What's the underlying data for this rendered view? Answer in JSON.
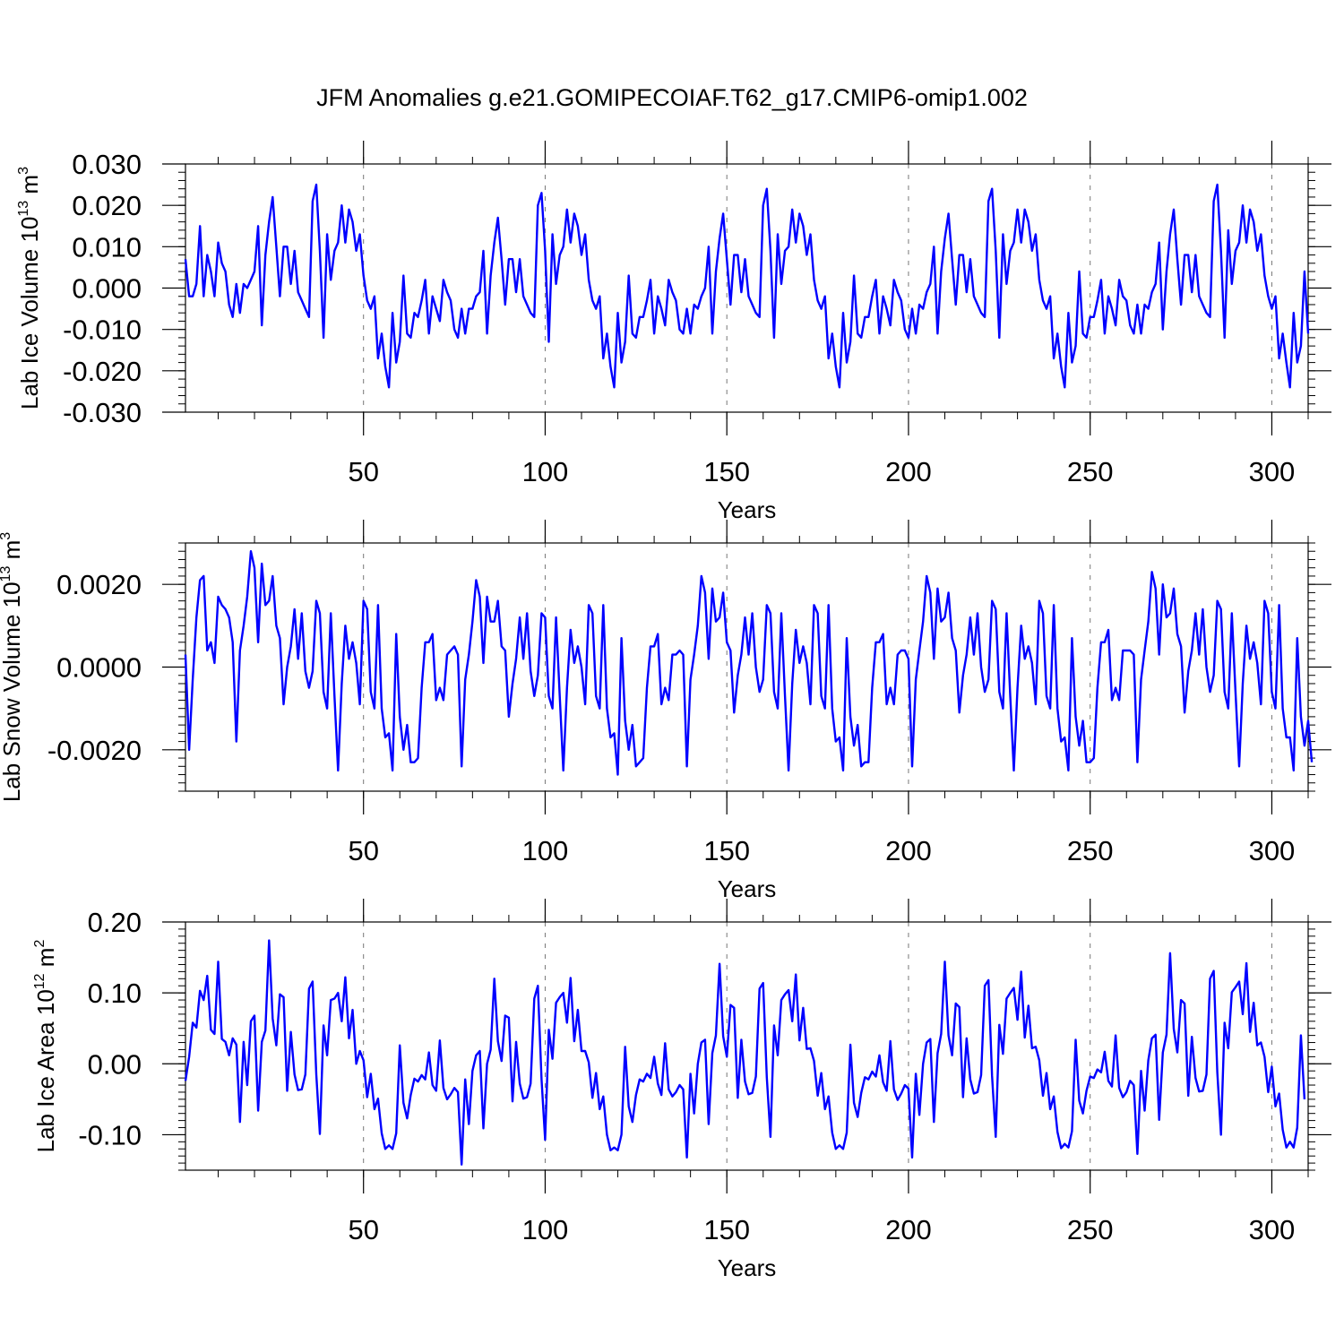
{
  "title": "JFM Anomalies g.e21.GOMIPECOIAF.T62_g17.CMIP6-omip1.002",
  "line_color": "#0000ff",
  "chart_data": [
    {
      "type": "line",
      "ylabel": {
        "main": "Lab Ice Volume 10",
        "sup": "13",
        "unit": " m",
        "unit_sup": "3"
      },
      "xlabel": "Years",
      "xlim": [
        1,
        310
      ],
      "ylim": [
        -0.03,
        0.03
      ],
      "xticks": [
        50,
        100,
        150,
        200,
        250,
        300
      ],
      "xtick_labels": [
        "50",
        "100",
        "150",
        "200",
        "250",
        "300"
      ],
      "yticks": [
        0.03,
        0.02,
        0.01,
        0.0,
        -0.01,
        -0.02,
        -0.03
      ],
      "ytick_labels": [
        "0.030",
        "0.020",
        "0.010",
        "0.000",
        "-0.010",
        "-0.020",
        "-0.030"
      ],
      "x_start": 1,
      "values": [
        0.007,
        -0.002,
        -0.002,
        0.001,
        0.015,
        -0.002,
        0.008,
        0.004,
        -0.002,
        0.011,
        0.006,
        0.004,
        -0.004,
        -0.007,
        0.001,
        -0.006,
        0.001,
        0.0,
        0.002,
        0.004,
        0.015,
        -0.009,
        0.008,
        0.016,
        0.022,
        0.01,
        -0.002,
        0.01,
        0.01,
        0.001,
        0.009,
        -0.001,
        -0.003,
        -0.005,
        -0.007,
        0.021,
        0.025,
        0.009,
        -0.012,
        0.013,
        0.002,
        0.009,
        0.011,
        0.02,
        0.011,
        0.019,
        0.016,
        0.009,
        0.013,
        0.003,
        -0.003,
        -0.005,
        -0.002,
        -0.017,
        -0.011,
        -0.019,
        -0.024,
        -0.006,
        -0.018,
        -0.013,
        0.003,
        -0.011,
        -0.012,
        -0.006,
        -0.007,
        -0.003,
        0.002,
        -0.011,
        -0.002,
        -0.005,
        -0.008,
        0.002,
        -0.001,
        -0.003,
        -0.01,
        -0.012,
        -0.005,
        -0.011,
        -0.005,
        -0.005,
        -0.002,
        -0.001,
        0.009,
        -0.011,
        0.003,
        0.011,
        0.017,
        0.007,
        -0.004,
        0.007,
        0.007,
        -0.001,
        0.007,
        -0.002,
        -0.004,
        -0.006,
        -0.007,
        0.02,
        0.023,
        0.009,
        -0.013,
        0.013,
        0.001,
        0.008,
        0.01,
        0.019,
        0.011,
        0.018,
        0.015,
        0.008,
        0.013,
        0.002,
        -0.003,
        -0.005,
        -0.002,
        -0.017,
        -0.011,
        -0.019,
        -0.024,
        -0.006,
        -0.018,
        -0.013,
        0.003,
        -0.011,
        -0.012,
        -0.007,
        -0.007,
        -0.003,
        0.002,
        -0.011,
        -0.002,
        -0.005,
        -0.009,
        0.002,
        -0.001,
        -0.003,
        -0.01,
        -0.011,
        -0.005,
        -0.011,
        -0.004,
        -0.005,
        -0.002,
        0.0,
        0.01,
        -0.011,
        0.004,
        0.012,
        0.018,
        0.007,
        -0.004,
        0.008,
        0.008,
        -0.001,
        0.007,
        -0.002,
        -0.004,
        -0.006,
        -0.007,
        0.02,
        0.024,
        0.009,
        -0.012,
        0.013,
        0.001,
        0.009,
        0.01,
        0.019,
        0.011,
        0.018,
        0.015,
        0.008,
        0.013,
        0.002,
        -0.003,
        -0.005,
        -0.002,
        -0.017,
        -0.011,
        -0.019,
        -0.024,
        -0.006,
        -0.018,
        -0.013,
        0.003,
        -0.011,
        -0.012,
        -0.007,
        -0.007,
        -0.002,
        0.002,
        -0.011,
        -0.002,
        -0.005,
        -0.009,
        0.002,
        -0.001,
        -0.003,
        -0.01,
        -0.012,
        -0.005,
        -0.011,
        -0.004,
        -0.005,
        -0.001,
        0.001,
        0.01,
        -0.011,
        0.004,
        0.012,
        0.018,
        0.007,
        -0.004,
        0.008,
        0.008,
        -0.001,
        0.007,
        -0.002,
        -0.004,
        -0.006,
        -0.007,
        0.021,
        0.024,
        0.009,
        -0.012,
        0.013,
        0.001,
        0.009,
        0.011,
        0.019,
        0.011,
        0.019,
        0.016,
        0.009,
        0.013,
        0.002,
        -0.003,
        -0.005,
        -0.002,
        -0.017,
        -0.011,
        -0.019,
        -0.024,
        -0.006,
        -0.018,
        -0.014,
        0.004,
        -0.011,
        -0.012,
        -0.007,
        -0.007,
        -0.003,
        0.002,
        -0.011,
        -0.002,
        -0.005,
        -0.009,
        0.002,
        -0.002,
        -0.003,
        -0.009,
        -0.011,
        -0.004,
        -0.011,
        -0.004,
        -0.005,
        -0.001,
        0.001,
        0.011,
        -0.01,
        0.004,
        0.013,
        0.019,
        0.007,
        -0.004,
        0.008,
        0.008,
        -0.001,
        0.008,
        -0.002,
        -0.004,
        -0.006,
        -0.007,
        0.021,
        0.025,
        0.009,
        -0.012,
        0.014,
        0.001,
        0.009,
        0.011,
        0.02,
        0.011,
        0.019,
        0.016,
        0.009,
        0.013,
        0.003,
        -0.002,
        -0.005,
        -0.002,
        -0.017,
        -0.011,
        -0.018,
        -0.024,
        -0.006,
        -0.018,
        -0.014,
        0.004,
        -0.011
      ]
    },
    {
      "type": "line",
      "ylabel": {
        "main": "Lab Snow Volume 10",
        "sup": "13",
        "unit": " m",
        "unit_sup": "3"
      },
      "xlabel": "Years",
      "xlim": [
        1,
        310
      ],
      "ylim": [
        -0.003,
        0.003
      ],
      "xticks": [
        50,
        100,
        150,
        200,
        250,
        300
      ],
      "xtick_labels": [
        "50",
        "100",
        "150",
        "200",
        "250",
        "300"
      ],
      "yticks": [
        0.002,
        0.0,
        -0.002
      ],
      "ytick_labels": [
        "0.0020",
        "0.0000",
        "-0.0020"
      ],
      "x_start": 1,
      "values": [
        0.0003,
        -0.002,
        -0.0003,
        0.0012,
        0.0021,
        0.0022,
        0.0004,
        0.0006,
        0.0001,
        0.0017,
        0.0015,
        0.0014,
        0.0012,
        0.0006,
        -0.0018,
        0.0004,
        0.001,
        0.0017,
        0.0028,
        0.0024,
        0.0006,
        0.0025,
        0.0015,
        0.0016,
        0.0022,
        0.001,
        0.0007,
        -0.0009,
        0.0,
        0.0005,
        0.0014,
        0.0002,
        0.0013,
        -0.0001,
        -0.0005,
        -0.0001,
        0.0016,
        0.0013,
        -0.0006,
        -0.001,
        0.0013,
        -0.0007,
        -0.0025,
        -0.0004,
        0.001,
        0.0002,
        0.0006,
        0.0001,
        -0.0009,
        0.0016,
        0.0014,
        -0.0006,
        -0.001,
        0.0015,
        -0.001,
        -0.0017,
        -0.0016,
        -0.0025,
        0.0008,
        -0.0012,
        -0.002,
        -0.0014,
        -0.0023,
        -0.0023,
        -0.0022,
        -0.0005,
        0.0006,
        0.0006,
        0.0008,
        -0.0008,
        -0.0005,
        -0.0008,
        0.0003,
        0.0004,
        0.0005,
        0.0003,
        -0.0024,
        -0.0003,
        0.0003,
        0.0011,
        0.0021,
        0.0017,
        0.0001,
        0.0017,
        0.0011,
        0.0011,
        0.0016,
        0.0005,
        0.0004,
        -0.0012,
        -0.0004,
        0.0002,
        0.0012,
        0.0002,
        0.0013,
        -0.0001,
        -0.0007,
        -0.0002,
        0.0013,
        0.0012,
        -0.0007,
        -0.001,
        0.0012,
        -0.0007,
        -0.0025,
        -0.0005,
        0.0009,
        0.0001,
        0.0005,
        0.0,
        -0.0009,
        0.0015,
        0.0013,
        -0.0007,
        -0.001,
        0.0015,
        -0.001,
        -0.0017,
        -0.0016,
        -0.0026,
        0.0007,
        -0.0013,
        -0.002,
        -0.0014,
        -0.0024,
        -0.0023,
        -0.0022,
        -0.0005,
        0.0005,
        0.0005,
        0.0008,
        -0.0009,
        -0.0005,
        -0.0008,
        0.0003,
        0.0003,
        0.0004,
        0.0003,
        -0.0024,
        -0.0003,
        0.0003,
        0.001,
        0.0022,
        0.0018,
        0.0002,
        0.0019,
        0.0011,
        0.0012,
        0.0018,
        0.0006,
        0.0004,
        -0.0011,
        -0.0002,
        0.0003,
        0.0012,
        0.0003,
        0.0013,
        0.0,
        -0.0006,
        -0.0003,
        0.0015,
        0.0013,
        -0.0006,
        -0.001,
        0.0013,
        -0.0007,
        -0.0025,
        -0.0004,
        0.0009,
        0.0001,
        0.0005,
        0.0001,
        -0.0009,
        0.0015,
        0.0013,
        -0.0007,
        -0.001,
        0.0015,
        -0.001,
        -0.0018,
        -0.0017,
        -0.0025,
        0.0007,
        -0.0012,
        -0.0019,
        -0.0014,
        -0.0024,
        -0.0023,
        -0.0023,
        -0.0005,
        0.0006,
        0.0006,
        0.0008,
        -0.0009,
        -0.0005,
        -0.0009,
        0.0003,
        0.0004,
        0.0004,
        0.0002,
        -0.0024,
        -0.0003,
        0.0004,
        0.0011,
        0.0022,
        0.0018,
        0.0002,
        0.0019,
        0.0011,
        0.0012,
        0.0018,
        0.0007,
        0.0004,
        -0.0011,
        -0.0002,
        0.0003,
        0.0012,
        0.0003,
        0.0013,
        0.0,
        -0.0006,
        -0.0003,
        0.0016,
        0.0014,
        -0.0006,
        -0.001,
        0.0013,
        -0.0007,
        -0.0025,
        -0.0005,
        0.001,
        0.0002,
        0.0005,
        0.0001,
        -0.0009,
        0.0016,
        0.0013,
        -0.0007,
        -0.001,
        0.0015,
        -0.001,
        -0.0018,
        -0.0017,
        -0.0025,
        0.0007,
        -0.0012,
        -0.0019,
        -0.0013,
        -0.0023,
        -0.0023,
        -0.0022,
        -0.0005,
        0.0006,
        0.0006,
        0.0009,
        -0.0008,
        -0.0005,
        -0.0008,
        0.0004,
        0.0004,
        0.0004,
        0.0003,
        -0.0023,
        -0.0003,
        0.0004,
        0.0011,
        0.0023,
        0.0019,
        0.0003,
        0.002,
        0.0012,
        0.0013,
        0.0019,
        0.0008,
        0.0005,
        -0.0011,
        -0.0001,
        0.0004,
        0.0013,
        0.0003,
        0.0014,
        0.0,
        -0.0006,
        -0.0002,
        0.0016,
        0.0014,
        -0.0006,
        -0.001,
        0.0013,
        -0.0006,
        -0.0024,
        -0.0004,
        0.001,
        0.0002,
        0.0006,
        0.0001,
        -0.0009,
        0.0016,
        0.0013,
        -0.0006,
        -0.001,
        0.0015,
        -0.001,
        -0.0017,
        -0.0017,
        -0.0025,
        0.0007,
        -0.0012,
        -0.0019,
        -0.0013,
        -0.0023
      ]
    },
    {
      "type": "line",
      "ylabel": {
        "main": "Lab Ice Area 10",
        "sup": "12",
        "unit": " m",
        "unit_sup": "2"
      },
      "xlabel": "Years",
      "xlim": [
        1,
        310
      ],
      "ylim": [
        -0.15,
        0.2
      ],
      "xticks": [
        50,
        100,
        150,
        200,
        250,
        300
      ],
      "xtick_labels": [
        "50",
        "100",
        "150",
        "200",
        "250",
        "300"
      ],
      "yticks": [
        0.2,
        0.1,
        0.0,
        -0.1
      ],
      "ytick_labels": [
        "0.20",
        "0.10",
        "0.00",
        "-0.10"
      ],
      "x_start": 1,
      "values": [
        -0.024,
        0.01,
        0.058,
        0.051,
        0.103,
        0.09,
        0.124,
        0.048,
        0.042,
        0.144,
        0.035,
        0.031,
        0.012,
        0.036,
        0.027,
        -0.082,
        0.031,
        -0.03,
        0.06,
        0.068,
        -0.066,
        0.031,
        0.047,
        0.174,
        0.064,
        0.026,
        0.098,
        0.094,
        -0.038,
        0.045,
        -0.015,
        -0.037,
        -0.036,
        -0.015,
        0.106,
        0.116,
        -0.015,
        -0.099,
        0.054,
        0.012,
        0.09,
        0.092,
        0.1,
        0.06,
        0.122,
        0.036,
        0.076,
        0.0,
        0.018,
        0.005,
        -0.047,
        -0.014,
        -0.064,
        -0.049,
        -0.098,
        -0.12,
        -0.115,
        -0.12,
        -0.098,
        0.026,
        -0.055,
        -0.077,
        -0.044,
        -0.021,
        -0.025,
        -0.016,
        -0.022,
        0.016,
        -0.03,
        -0.038,
        0.033,
        -0.034,
        -0.05,
        -0.043,
        -0.034,
        -0.04,
        -0.142,
        -0.022,
        -0.085,
        -0.01,
        0.012,
        0.018,
        -0.091,
        0.0,
        0.02,
        0.12,
        0.032,
        0.004,
        0.068,
        0.065,
        -0.053,
        0.031,
        -0.028,
        -0.049,
        -0.047,
        -0.028,
        0.092,
        0.11,
        -0.022,
        -0.107,
        0.048,
        0.007,
        0.086,
        0.094,
        0.1,
        0.058,
        0.121,
        0.032,
        0.076,
        0.018,
        0.018,
        0.002,
        -0.048,
        -0.013,
        -0.064,
        -0.046,
        -0.1,
        -0.122,
        -0.118,
        -0.122,
        -0.1,
        0.024,
        -0.06,
        -0.082,
        -0.044,
        -0.022,
        -0.025,
        -0.014,
        -0.02,
        0.01,
        -0.028,
        -0.044,
        0.029,
        -0.036,
        -0.046,
        -0.04,
        -0.03,
        -0.036,
        -0.132,
        -0.014,
        -0.07,
        0.0,
        0.03,
        0.034,
        -0.085,
        0.015,
        0.04,
        0.141,
        0.039,
        0.01,
        0.083,
        0.079,
        -0.048,
        0.034,
        -0.025,
        -0.043,
        -0.041,
        -0.018,
        0.106,
        0.114,
        -0.019,
        -0.103,
        0.054,
        0.012,
        0.09,
        0.098,
        0.104,
        0.06,
        0.126,
        0.033,
        0.079,
        0.021,
        0.022,
        0.004,
        -0.045,
        -0.013,
        -0.064,
        -0.046,
        -0.097,
        -0.12,
        -0.115,
        -0.12,
        -0.097,
        0.027,
        -0.055,
        -0.075,
        -0.041,
        -0.019,
        -0.022,
        -0.011,
        -0.018,
        0.012,
        -0.026,
        -0.038,
        0.032,
        -0.036,
        -0.051,
        -0.042,
        -0.03,
        -0.035,
        -0.132,
        -0.014,
        -0.072,
        0.0,
        0.03,
        0.035,
        -0.082,
        0.015,
        0.042,
        0.144,
        0.04,
        0.012,
        0.085,
        0.08,
        -0.047,
        0.036,
        -0.022,
        -0.042,
        -0.04,
        -0.016,
        0.11,
        0.118,
        -0.017,
        -0.103,
        0.055,
        0.014,
        0.092,
        0.1,
        0.107,
        0.062,
        0.13,
        0.037,
        0.082,
        0.022,
        0.024,
        0.005,
        -0.045,
        -0.013,
        -0.064,
        -0.046,
        -0.096,
        -0.119,
        -0.113,
        -0.118,
        -0.095,
        0.034,
        -0.052,
        -0.07,
        -0.038,
        -0.018,
        -0.02,
        -0.008,
        -0.012,
        0.017,
        -0.024,
        -0.032,
        0.04,
        -0.034,
        -0.047,
        -0.04,
        -0.024,
        -0.03,
        -0.127,
        -0.01,
        -0.066,
        0.005,
        0.036,
        0.041,
        -0.079,
        0.016,
        0.041,
        0.156,
        0.049,
        0.016,
        0.09,
        0.085,
        -0.045,
        0.038,
        -0.02,
        -0.039,
        -0.038,
        -0.015,
        0.12,
        0.131,
        -0.012,
        -0.1,
        0.058,
        0.022,
        0.101,
        0.108,
        0.116,
        0.07,
        0.142,
        0.045,
        0.086,
        0.026,
        0.03,
        0.01,
        -0.04,
        -0.004,
        -0.06,
        -0.042,
        -0.093,
        -0.118,
        -0.11,
        -0.118,
        -0.09,
        0.04,
        -0.05
      ]
    }
  ]
}
